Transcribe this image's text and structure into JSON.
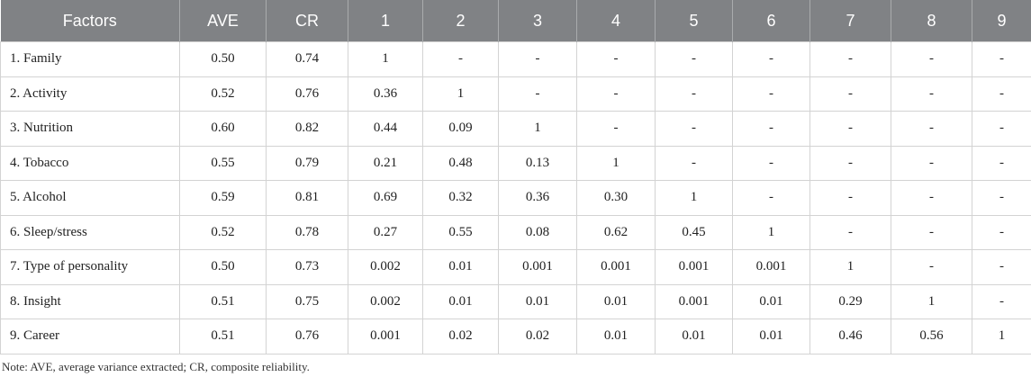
{
  "table": {
    "header": [
      "Factors",
      "AVE",
      "CR",
      "1",
      "2",
      "3",
      "4",
      "5",
      "6",
      "7",
      "8",
      "9"
    ],
    "rows": [
      [
        "1. Family",
        "0.50",
        "0.74",
        "1",
        "-",
        "-",
        "-",
        "-",
        "-",
        "-",
        "-",
        "-"
      ],
      [
        "2. Activity",
        "0.52",
        "0.76",
        "0.36",
        "1",
        "-",
        "-",
        "-",
        "-",
        "-",
        "-",
        "-"
      ],
      [
        "3. Nutrition",
        "0.60",
        "0.82",
        "0.44",
        "0.09",
        "1",
        "-",
        "-",
        "-",
        "-",
        "-",
        "-"
      ],
      [
        "4. Tobacco",
        "0.55",
        "0.79",
        "0.21",
        "0.48",
        "0.13",
        "1",
        "-",
        "-",
        "-",
        "-",
        "-"
      ],
      [
        "5. Alcohol",
        "0.59",
        "0.81",
        "0.69",
        "0.32",
        "0.36",
        "0.30",
        "1",
        "-",
        "-",
        "-",
        "-"
      ],
      [
        "6. Sleep/stress",
        "0.52",
        "0.78",
        "0.27",
        "0.55",
        "0.08",
        "0.62",
        "0.45",
        "1",
        "-",
        "-",
        "-"
      ],
      [
        "7. Type of personality",
        "0.50",
        "0.73",
        "0.002",
        "0.01",
        "0.001",
        "0.001",
        "0.001",
        "0.001",
        "1",
        "-",
        "-"
      ],
      [
        "8. Insight",
        "0.51",
        "0.75",
        "0.002",
        "0.01",
        "0.01",
        "0.01",
        "0.001",
        "0.01",
        "0.29",
        "1",
        "-"
      ],
      [
        "9. Career",
        "0.51",
        "0.76",
        "0.001",
        "0.02",
        "0.02",
        "0.01",
        "0.01",
        "0.01",
        "0.46",
        "0.56",
        "1"
      ]
    ]
  },
  "note": "Note: AVE, average variance extracted; CR, composite reliability."
}
